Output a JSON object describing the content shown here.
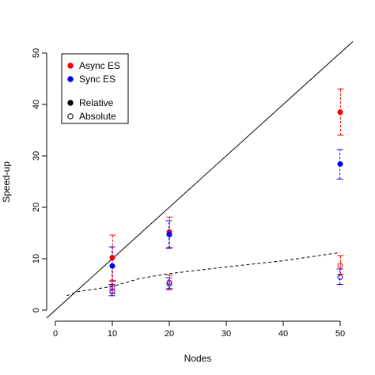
{
  "chart_data": {
    "type": "scatter",
    "xlabel": "Nodes",
    "ylabel": "Speed-up",
    "xlim": [
      0,
      50
    ],
    "ylim": [
      0,
      50
    ],
    "x_ticks": [
      0,
      10,
      20,
      30,
      40,
      50
    ],
    "y_ticks": [
      0,
      10,
      20,
      30,
      40,
      50
    ],
    "grid": false,
    "legend_position": "top-left",
    "legend": [
      {
        "label": "Async ES",
        "marker": "filled-dot",
        "color": "#ff0000"
      },
      {
        "label": "Sync ES",
        "marker": "filled-dot",
        "color": "#0000ff"
      },
      {
        "label": "Relative",
        "marker": "filled-dot",
        "color": "#000000"
      },
      {
        "label": "Absolute",
        "marker": "open-circle",
        "color": "#000000"
      }
    ],
    "colors": {
      "async": "#ff0000",
      "sync": "#0000ff",
      "line": "#000000"
    },
    "series": [
      {
        "name": "Async ES",
        "kind": "Relative",
        "color": "#ff0000",
        "points": [
          {
            "x": 10,
            "y": 10.2,
            "low": 5.6,
            "high": 14.6
          },
          {
            "x": 20,
            "y": 15.2,
            "low": 12.2,
            "high": 18.1
          },
          {
            "x": 50,
            "y": 38.5,
            "low": 34.0,
            "high": 43.0
          }
        ]
      },
      {
        "name": "Sync ES",
        "kind": "Relative",
        "color": "#0000ff",
        "points": [
          {
            "x": 10,
            "y": 8.6,
            "low": 5.0,
            "high": 12.3
          },
          {
            "x": 20,
            "y": 14.7,
            "low": 12.0,
            "high": 17.4
          },
          {
            "x": 50,
            "y": 28.4,
            "low": 25.5,
            "high": 31.2
          }
        ]
      },
      {
        "name": "Async ES",
        "kind": "Absolute",
        "color": "#ff0000",
        "points": [
          {
            "x": 10,
            "y": 4.3,
            "low": 3.2,
            "high": 5.8
          },
          {
            "x": 20,
            "y": 5.4,
            "low": 4.2,
            "high": 6.8
          },
          {
            "x": 50,
            "y": 8.7,
            "low": 7.0,
            "high": 10.6
          }
        ]
      },
      {
        "name": "Sync ES",
        "kind": "Absolute",
        "color": "#0000ff",
        "points": [
          {
            "x": 10,
            "y": 3.7,
            "low": 2.8,
            "high": 4.7
          },
          {
            "x": 20,
            "y": 5.1,
            "low": 4.0,
            "high": 6.3
          },
          {
            "x": 50,
            "y": 6.4,
            "low": 5.0,
            "high": 8.0
          }
        ]
      }
    ],
    "reference_line": {
      "style": "solid",
      "x": [
        -2,
        54
      ],
      "y": [
        -2,
        54
      ]
    },
    "trend_line": {
      "style": "dashed",
      "x": [
        2,
        4,
        10,
        15,
        20,
        30,
        40,
        50
      ],
      "y": [
        2.8,
        3.6,
        4.6,
        6.2,
        7.1,
        8.4,
        9.6,
        11.2
      ]
    }
  }
}
